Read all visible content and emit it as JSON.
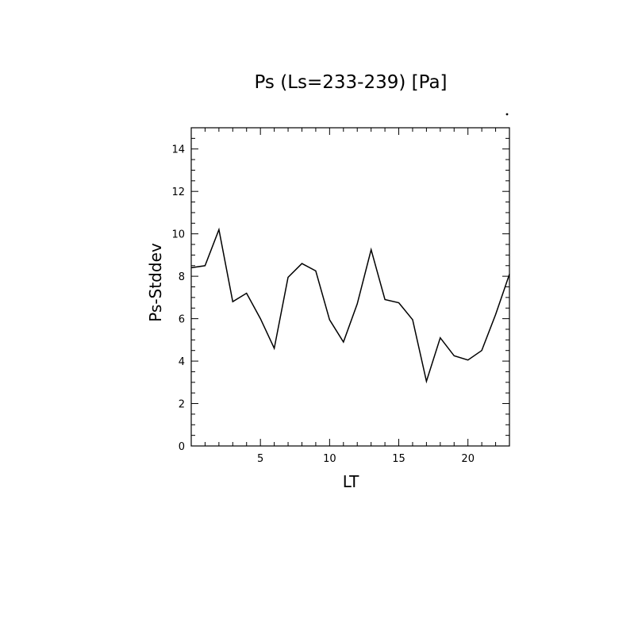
{
  "chart_data": {
    "type": "line",
    "title": "Ps (Ls=233-239) [Pa]",
    "xlabel": "LT",
    "ylabel": "Ps-Stddev",
    "xlim": [
      0,
      23
    ],
    "ylim": [
      0,
      15
    ],
    "xticks": [
      5,
      10,
      15,
      20
    ],
    "yticks": [
      0,
      2,
      4,
      6,
      8,
      10,
      12,
      14
    ],
    "grid": false,
    "series": [
      {
        "x": [
          0,
          1,
          2,
          3,
          4,
          5,
          6,
          7,
          8,
          9,
          10,
          11,
          12,
          13,
          14,
          15,
          16,
          17,
          18,
          19,
          20,
          21,
          22,
          23
        ],
        "values": [
          8.4,
          8.5,
          10.2,
          6.8,
          7.2,
          6.0,
          4.6,
          7.95,
          8.6,
          8.25,
          5.95,
          4.9,
          6.7,
          9.25,
          6.9,
          6.75,
          5.95,
          3.05,
          5.1,
          4.25,
          4.05,
          4.5,
          6.2,
          8.1
        ]
      }
    ],
    "line_color": "#000000"
  }
}
